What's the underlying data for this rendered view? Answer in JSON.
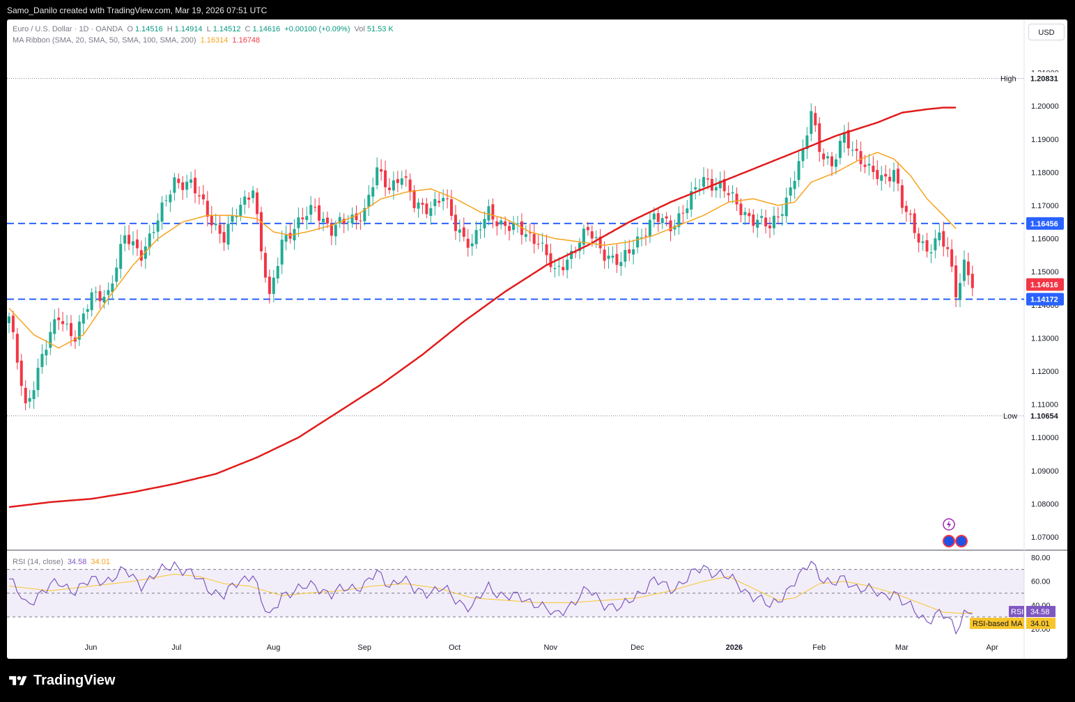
{
  "header": {
    "credit": "Samo_Danilo created with TradingView.com, Mar 19, 2026 07:51 UTC"
  },
  "legend": {
    "symbol": "Euro / U.S. Dollar · 1D · OANDA",
    "o_label": "O",
    "o": "1.14516",
    "h_label": "H",
    "h": "1.14914",
    "l_label": "L",
    "l": "1.14512",
    "c_label": "C",
    "c": "1.14616",
    "change": "+0.00100 (+0.09%)",
    "vol_label": "Vol",
    "vol": "51.53 K",
    "ma_label": "MA Ribbon (SMA, 20, SMA, 50, SMA, 100, SMA, 200)",
    "ma1": "1.16314",
    "ma2": "1.16748",
    "rsi_label": "RSI (14, close)",
    "rsi": "34.58",
    "rsi_ma": "34.01"
  },
  "currency_button": "USD",
  "brand": "TradingView",
  "chart_data": {
    "type": "candlestick",
    "y_ticks": [
      "1.21000",
      "1.20000",
      "1.19000",
      "1.18000",
      "1.17000",
      "1.16000",
      "1.15000",
      "1.14000",
      "1.13000",
      "1.12000",
      "1.11000",
      "1.10000",
      "1.09000",
      "1.08000",
      "1.07000"
    ],
    "ylim": [
      1.066,
      1.216
    ],
    "x_ticks": [
      {
        "label": "Jun",
        "i": 20
      },
      {
        "label": "Jul",
        "i": 41
      },
      {
        "label": "Aug",
        "i": 64
      },
      {
        "label": "Sep",
        "i": 86
      },
      {
        "label": "Oct",
        "i": 108
      },
      {
        "label": "Nov",
        "i": 131
      },
      {
        "label": "Dec",
        "i": 152
      },
      {
        "label": "2026",
        "i": 175
      },
      {
        "label": "Feb",
        "i": 196
      },
      {
        "label": "Mar",
        "i": 216
      },
      {
        "label": "Apr",
        "i": 238
      }
    ],
    "n_bars": 246,
    "markers": {
      "high": {
        "label": "High",
        "value": "1.20831",
        "i": 193
      },
      "low": {
        "label": "Low",
        "value": "1.10654",
        "i": 4
      },
      "last": "1.14616"
    },
    "hlines": [
      {
        "value": 1.16456,
        "label": "1.16456",
        "color": "#2962ff"
      },
      {
        "value": 1.14172,
        "label": "1.14172",
        "color": "#2962ff"
      }
    ],
    "close_path": [
      [
        0,
        1.1365
      ],
      [
        4,
        1.1085
      ],
      [
        8,
        1.125
      ],
      [
        12,
        1.136
      ],
      [
        16,
        1.131
      ],
      [
        20,
        1.142
      ],
      [
        24,
        1.144
      ],
      [
        28,
        1.16
      ],
      [
        32,
        1.156
      ],
      [
        36,
        1.165
      ],
      [
        40,
        1.178
      ],
      [
        44,
        1.176
      ],
      [
        48,
        1.168
      ],
      [
        52,
        1.16
      ],
      [
        56,
        1.17
      ],
      [
        59,
        1.176
      ],
      [
        61,
        1.156
      ],
      [
        63,
        1.141
      ],
      [
        66,
        1.16
      ],
      [
        70,
        1.164
      ],
      [
        74,
        1.17
      ],
      [
        78,
        1.162
      ],
      [
        82,
        1.166
      ],
      [
        86,
        1.168
      ],
      [
        89,
        1.18
      ],
      [
        92,
        1.176
      ],
      [
        95,
        1.179
      ],
      [
        98,
        1.17
      ],
      [
        102,
        1.17
      ],
      [
        105,
        1.172
      ],
      [
        108,
        1.164
      ],
      [
        112,
        1.158
      ],
      [
        116,
        1.168
      ],
      [
        120,
        1.164
      ],
      [
        124,
        1.162
      ],
      [
        128,
        1.16
      ],
      [
        132,
        1.149
      ],
      [
        136,
        1.156
      ],
      [
        140,
        1.162
      ],
      [
        144,
        1.156
      ],
      [
        148,
        1.152
      ],
      [
        152,
        1.16
      ],
      [
        156,
        1.166
      ],
      [
        160,
        1.164
      ],
      [
        164,
        1.17
      ],
      [
        168,
        1.178
      ],
      [
        172,
        1.176
      ],
      [
        176,
        1.17
      ],
      [
        180,
        1.166
      ],
      [
        184,
        1.163
      ],
      [
        188,
        1.172
      ],
      [
        192,
        1.185
      ],
      [
        194,
        1.199
      ],
      [
        196,
        1.188
      ],
      [
        199,
        1.181
      ],
      [
        202,
        1.191
      ],
      [
        205,
        1.186
      ],
      [
        208,
        1.18
      ],
      [
        211,
        1.178
      ],
      [
        214,
        1.181
      ],
      [
        216,
        1.17
      ],
      [
        219,
        1.162
      ],
      [
        222,
        1.157
      ],
      [
        225,
        1.16
      ],
      [
        227,
        1.156
      ],
      [
        229,
        1.144
      ],
      [
        231,
        1.153
      ],
      [
        233,
        1.146
      ]
    ],
    "sma_short": [
      [
        0,
        1.139
      ],
      [
        6,
        1.131
      ],
      [
        12,
        1.127
      ],
      [
        18,
        1.131
      ],
      [
        24,
        1.142
      ],
      [
        30,
        1.152
      ],
      [
        36,
        1.16
      ],
      [
        42,
        1.165
      ],
      [
        48,
        1.167
      ],
      [
        54,
        1.167
      ],
      [
        60,
        1.166
      ],
      [
        64,
        1.162
      ],
      [
        68,
        1.161
      ],
      [
        72,
        1.162
      ],
      [
        78,
        1.164
      ],
      [
        84,
        1.167
      ],
      [
        90,
        1.172
      ],
      [
        96,
        1.174
      ],
      [
        102,
        1.175
      ],
      [
        108,
        1.172
      ],
      [
        114,
        1.168
      ],
      [
        120,
        1.166
      ],
      [
        126,
        1.162
      ],
      [
        132,
        1.16
      ],
      [
        138,
        1.159
      ],
      [
        144,
        1.158
      ],
      [
        150,
        1.159
      ],
      [
        156,
        1.161
      ],
      [
        162,
        1.164
      ],
      [
        168,
        1.167
      ],
      [
        174,
        1.171
      ],
      [
        180,
        1.172
      ],
      [
        186,
        1.17
      ],
      [
        190,
        1.171
      ],
      [
        194,
        1.177
      ],
      [
        200,
        1.18
      ],
      [
        206,
        1.184
      ],
      [
        210,
        1.186
      ],
      [
        214,
        1.184
      ],
      [
        218,
        1.179
      ],
      [
        222,
        1.172
      ],
      [
        226,
        1.167
      ],
      [
        229,
        1.163
      ]
    ],
    "sma_long": [
      [
        0,
        1.079
      ],
      [
        10,
        1.0805
      ],
      [
        20,
        1.0815
      ],
      [
        30,
        1.0835
      ],
      [
        40,
        1.086
      ],
      [
        50,
        1.089
      ],
      [
        60,
        1.094
      ],
      [
        70,
        1.1
      ],
      [
        80,
        1.108
      ],
      [
        90,
        1.116
      ],
      [
        100,
        1.125
      ],
      [
        110,
        1.135
      ],
      [
        120,
        1.144
      ],
      [
        130,
        1.152
      ],
      [
        140,
        1.158
      ],
      [
        150,
        1.165
      ],
      [
        160,
        1.171
      ],
      [
        170,
        1.176
      ],
      [
        180,
        1.181
      ],
      [
        190,
        1.186
      ],
      [
        200,
        1.191
      ],
      [
        210,
        1.195
      ],
      [
        216,
        1.198
      ],
      [
        222,
        1.199
      ],
      [
        226,
        1.1995
      ],
      [
        229,
        1.1995
      ]
    ],
    "rsi": {
      "ylim": [
        10,
        85
      ],
      "ticks": [
        "80.00",
        "60.00",
        "40.00",
        "20.00"
      ],
      "band": [
        30,
        70
      ],
      "labels": {
        "rsi": "RSI",
        "rsi_value": "34.58",
        "ma": "RSI-based MA",
        "ma_value": "34.01"
      },
      "rsi_path": [
        [
          0,
          62
        ],
        [
          4,
          40
        ],
        [
          8,
          52
        ],
        [
          12,
          58
        ],
        [
          16,
          53
        ],
        [
          20,
          60
        ],
        [
          24,
          62
        ],
        [
          28,
          68
        ],
        [
          32,
          58
        ],
        [
          36,
          66
        ],
        [
          40,
          75
        ],
        [
          44,
          66
        ],
        [
          48,
          55
        ],
        [
          52,
          48
        ],
        [
          56,
          60
        ],
        [
          59,
          68
        ],
        [
          61,
          43
        ],
        [
          63,
          28
        ],
        [
          66,
          50
        ],
        [
          70,
          52
        ],
        [
          74,
          58
        ],
        [
          78,
          48
        ],
        [
          82,
          55
        ],
        [
          86,
          57
        ],
        [
          89,
          66
        ],
        [
          92,
          58
        ],
        [
          95,
          62
        ],
        [
          98,
          52
        ],
        [
          102,
          52
        ],
        [
          105,
          53
        ],
        [
          108,
          45
        ],
        [
          112,
          38
        ],
        [
          116,
          55
        ],
        [
          120,
          48
        ],
        [
          124,
          45
        ],
        [
          128,
          42
        ],
        [
          132,
          30
        ],
        [
          136,
          42
        ],
        [
          140,
          52
        ],
        [
          144,
          42
        ],
        [
          148,
          36
        ],
        [
          152,
          50
        ],
        [
          156,
          60
        ],
        [
          160,
          54
        ],
        [
          164,
          62
        ],
        [
          168,
          72
        ],
        [
          172,
          66
        ],
        [
          176,
          58
        ],
        [
          180,
          48
        ],
        [
          184,
          38
        ],
        [
          188,
          52
        ],
        [
          192,
          66
        ],
        [
          194,
          78
        ],
        [
          196,
          66
        ],
        [
          199,
          56
        ],
        [
          202,
          62
        ],
        [
          205,
          56
        ],
        [
          208,
          52
        ],
        [
          211,
          48
        ],
        [
          214,
          52
        ],
        [
          216,
          42
        ],
        [
          219,
          35
        ],
        [
          222,
          28
        ],
        [
          225,
          32
        ],
        [
          227,
          28
        ],
        [
          229,
          20
        ],
        [
          231,
          34
        ],
        [
          233,
          35
        ]
      ],
      "ma_path": [
        [
          0,
          56
        ],
        [
          10,
          52
        ],
        [
          20,
          56
        ],
        [
          30,
          60
        ],
        [
          40,
          66
        ],
        [
          46,
          64
        ],
        [
          52,
          58
        ],
        [
          58,
          56
        ],
        [
          62,
          52
        ],
        [
          66,
          48
        ],
        [
          72,
          50
        ],
        [
          80,
          52
        ],
        [
          88,
          56
        ],
        [
          96,
          58
        ],
        [
          104,
          54
        ],
        [
          112,
          46
        ],
        [
          120,
          44
        ],
        [
          128,
          42
        ],
        [
          136,
          42
        ],
        [
          144,
          44
        ],
        [
          152,
          46
        ],
        [
          160,
          52
        ],
        [
          168,
          60
        ],
        [
          174,
          64
        ],
        [
          180,
          54
        ],
        [
          186,
          44
        ],
        [
          190,
          46
        ],
        [
          196,
          58
        ],
        [
          202,
          60
        ],
        [
          208,
          56
        ],
        [
          214,
          50
        ],
        [
          220,
          42
        ],
        [
          226,
          34
        ],
        [
          231,
          33
        ],
        [
          233,
          34
        ]
      ]
    }
  }
}
